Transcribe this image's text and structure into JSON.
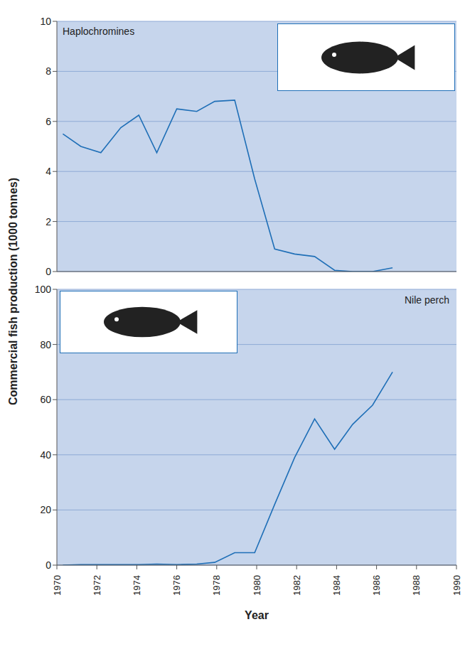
{
  "chart_data": [
    {
      "type": "line",
      "title": "Haplochromines",
      "y_label": "Commercial fish production (1000 tonnes)",
      "x": [
        1970.3,
        1971.2,
        1972.2,
        1973.2,
        1974.1,
        1975.0,
        1976.0,
        1977.0,
        1977.9,
        1978.9,
        1979.9,
        1980.9,
        1981.9,
        1982.9,
        1983.9,
        1984.8,
        1985.8,
        1986.8
      ],
      "values": [
        5.5,
        5.0,
        4.75,
        5.75,
        6.25,
        4.75,
        6.5,
        6.4,
        6.8,
        6.85,
        3.7,
        0.9,
        0.7,
        0.6,
        0.05,
        0.0,
        0.0,
        0.15
      ],
      "color": "#1f6fb7",
      "xlim": [
        1970,
        1990
      ],
      "ylim": [
        0,
        10
      ],
      "yticks": [
        0,
        2,
        4,
        6,
        8,
        10
      ],
      "grid": true,
      "tick_labels": "y"
    },
    {
      "type": "line",
      "title": "Nile perch",
      "x_label": "Year",
      "x": [
        1970.3,
        1971.2,
        1972.2,
        1973.2,
        1974.1,
        1975.0,
        1976.0,
        1977.0,
        1977.9,
        1978.9,
        1979.9,
        1980.9,
        1981.9,
        1982.9,
        1983.9,
        1984.8,
        1985.8,
        1986.8
      ],
      "values": [
        0,
        0.2,
        0.2,
        0.2,
        0.2,
        0.4,
        0.2,
        0.4,
        1,
        4.5,
        4.5,
        22,
        39,
        53,
        42,
        51,
        58,
        70
      ],
      "color": "#1f6fb7",
      "xlim": [
        1970,
        1990
      ],
      "xticks": [
        1970,
        1972,
        1974,
        1976,
        1978,
        1980,
        1982,
        1984,
        1986,
        1988,
        1990
      ],
      "ylim": [
        0,
        100
      ],
      "yticks": [
        0,
        20,
        40,
        60,
        80,
        100
      ],
      "grid": true
    }
  ]
}
